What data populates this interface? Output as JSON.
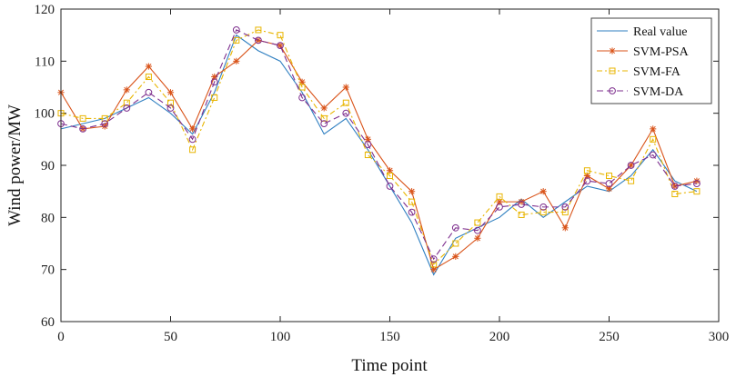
{
  "chart_data": {
    "type": "line",
    "title": "",
    "xlabel": "Time point",
    "ylabel": "Wind power/MW",
    "xlim": [
      0,
      300
    ],
    "ylim": [
      60,
      120
    ],
    "xticks": [
      0,
      50,
      100,
      150,
      200,
      250,
      300
    ],
    "yticks": [
      60,
      70,
      80,
      90,
      100,
      110,
      120
    ],
    "legend_position": "top-right",
    "x": [
      0,
      10,
      20,
      30,
      40,
      50,
      60,
      70,
      80,
      90,
      100,
      110,
      120,
      130,
      140,
      150,
      160,
      170,
      180,
      190,
      200,
      210,
      220,
      230,
      240,
      250,
      260,
      270,
      280,
      290
    ],
    "series": [
      {
        "name": "Real value",
        "color": "#2f7fc1",
        "dash": "",
        "marker": "none",
        "values": [
          97,
          98,
          99,
          101,
          103,
          100,
          96,
          104,
          115,
          112,
          110,
          104,
          96,
          99,
          93,
          86,
          79,
          69,
          76,
          78,
          80,
          83.5,
          80,
          83,
          86,
          85,
          88,
          93,
          87,
          85
        ]
      },
      {
        "name": "SVM-PSA",
        "color": "#d95319",
        "dash": "",
        "marker": "asterisk",
        "values": [
          104,
          97,
          97.5,
          104.5,
          109,
          104,
          97,
          107,
          110,
          114,
          113,
          106,
          101,
          105,
          95,
          89,
          85,
          70,
          72.5,
          76,
          83,
          83,
          85,
          78,
          88,
          85.5,
          90,
          97,
          86,
          87
        ]
      },
      {
        "name": "SVM-FA",
        "color": "#e8b500",
        "dash": "6,3,2,3",
        "marker": "square",
        "values": [
          100,
          99,
          99,
          102,
          107,
          102,
          93,
          103,
          114,
          116,
          115,
          105,
          99,
          102,
          92,
          88,
          83,
          71,
          75,
          79,
          84,
          80.5,
          81,
          81,
          89,
          88,
          87,
          95,
          84.5,
          85
        ]
      },
      {
        "name": "SVM-DA",
        "color": "#7e2f8e",
        "dash": "7,4",
        "marker": "circle",
        "values": [
          98,
          97,
          98,
          101,
          104,
          101,
          95,
          106,
          116,
          114,
          113,
          103,
          98,
          100,
          94,
          86,
          81,
          72,
          78,
          77.5,
          82,
          82.5,
          82,
          82,
          87,
          86.5,
          90,
          92,
          86,
          86.5
        ]
      }
    ]
  }
}
